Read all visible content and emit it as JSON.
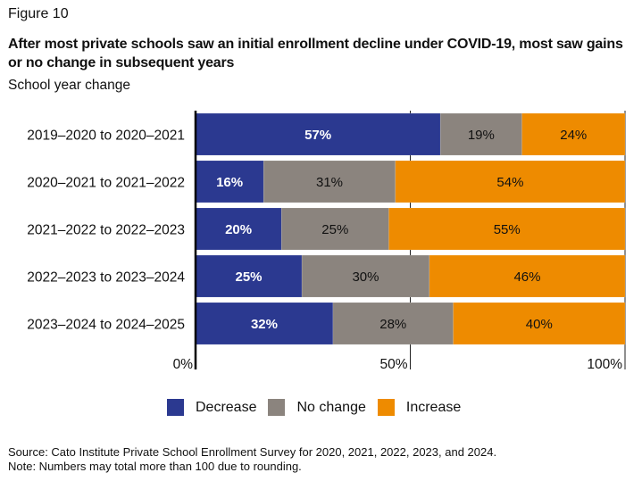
{
  "figure_label": "Figure 10",
  "chart_data": {
    "type": "bar",
    "orientation": "horizontal",
    "stacked": true,
    "normalized": true,
    "title": "After most private schools saw an initial enrollment decline under COVID-19, most saw gains or no change in subsequent years",
    "subtitle": "School year change",
    "xlabel": "",
    "ylabel": "",
    "xlim": [
      0,
      100
    ],
    "x_ticks": [
      "0%",
      "50%",
      "100%"
    ],
    "grid": false,
    "legend_position": "bottom",
    "categories": [
      "2019–2020 to 2020–2021",
      "2020–2021 to 2021–2022",
      "2021–2022 to 2022–2023",
      "2022–2023 to 2023–2024",
      "2023–2024 to 2024–2025"
    ],
    "series": [
      {
        "name": "Decrease",
        "color": "#2b3990",
        "label_color": "#ffffff",
        "values": [
          57,
          16,
          20,
          25,
          32
        ]
      },
      {
        "name": "No change",
        "color": "#8b847e",
        "label_color": "#111111",
        "values": [
          19,
          31,
          25,
          30,
          28
        ]
      },
      {
        "name": "Increase",
        "color": "#ee8b00",
        "label_color": "#111111",
        "values": [
          24,
          54,
          55,
          46,
          40
        ]
      }
    ]
  },
  "footer": {
    "source": "Source: Cato Institute Private School Enrollment Survey for 2020, 2021, 2022, 2023, and 2024.",
    "note": "Note: Numbers may total more than 100 due to rounding."
  }
}
